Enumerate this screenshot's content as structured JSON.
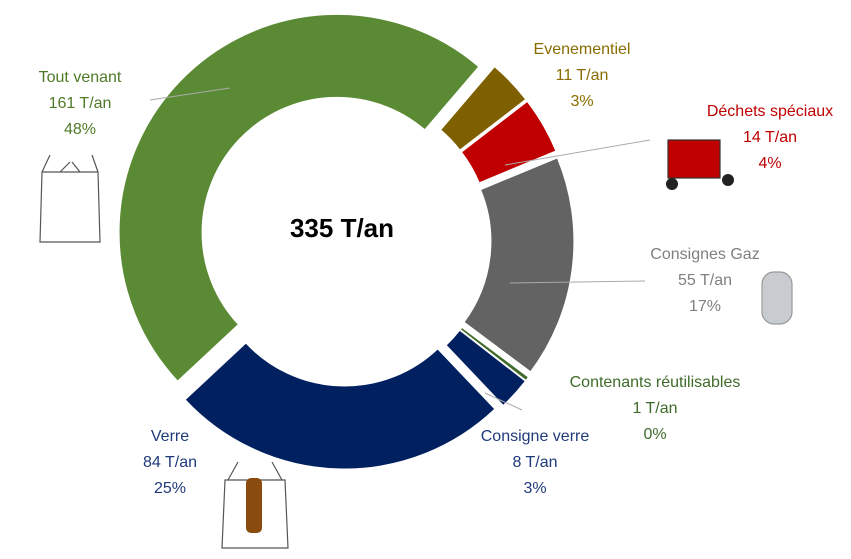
{
  "chart_data": {
    "type": "donut",
    "center_label": "335 T/an",
    "categories": [
      "Tout venant",
      "Evenementiel",
      "Déchets spéciaux",
      "Consignes Gaz",
      "Contenants réutilisables",
      "Consigne verre",
      "Verre"
    ],
    "values": [
      161,
      11,
      14,
      55,
      1,
      8,
      84
    ],
    "value_labels": [
      "161 T/an",
      "11 T/an",
      "14 T/an",
      "55 T/an",
      "1 T/an",
      "8 T/an",
      "84 T/an"
    ],
    "share_labels": [
      "48%",
      "3%",
      "4%",
      "17%",
      "0%",
      "3%",
      "25%"
    ],
    "colors": [
      "#5b8a35",
      "#7f6000",
      "#c00000",
      "#636363",
      "#3f6b2a",
      "#002060",
      "#002060"
    ],
    "label_colors": [
      "#4f7a28",
      "#8a6d00",
      "#c00000",
      "#7f7f7f",
      "#3f6b2a",
      "#1f3a7a",
      "#1f3a7a"
    ]
  }
}
